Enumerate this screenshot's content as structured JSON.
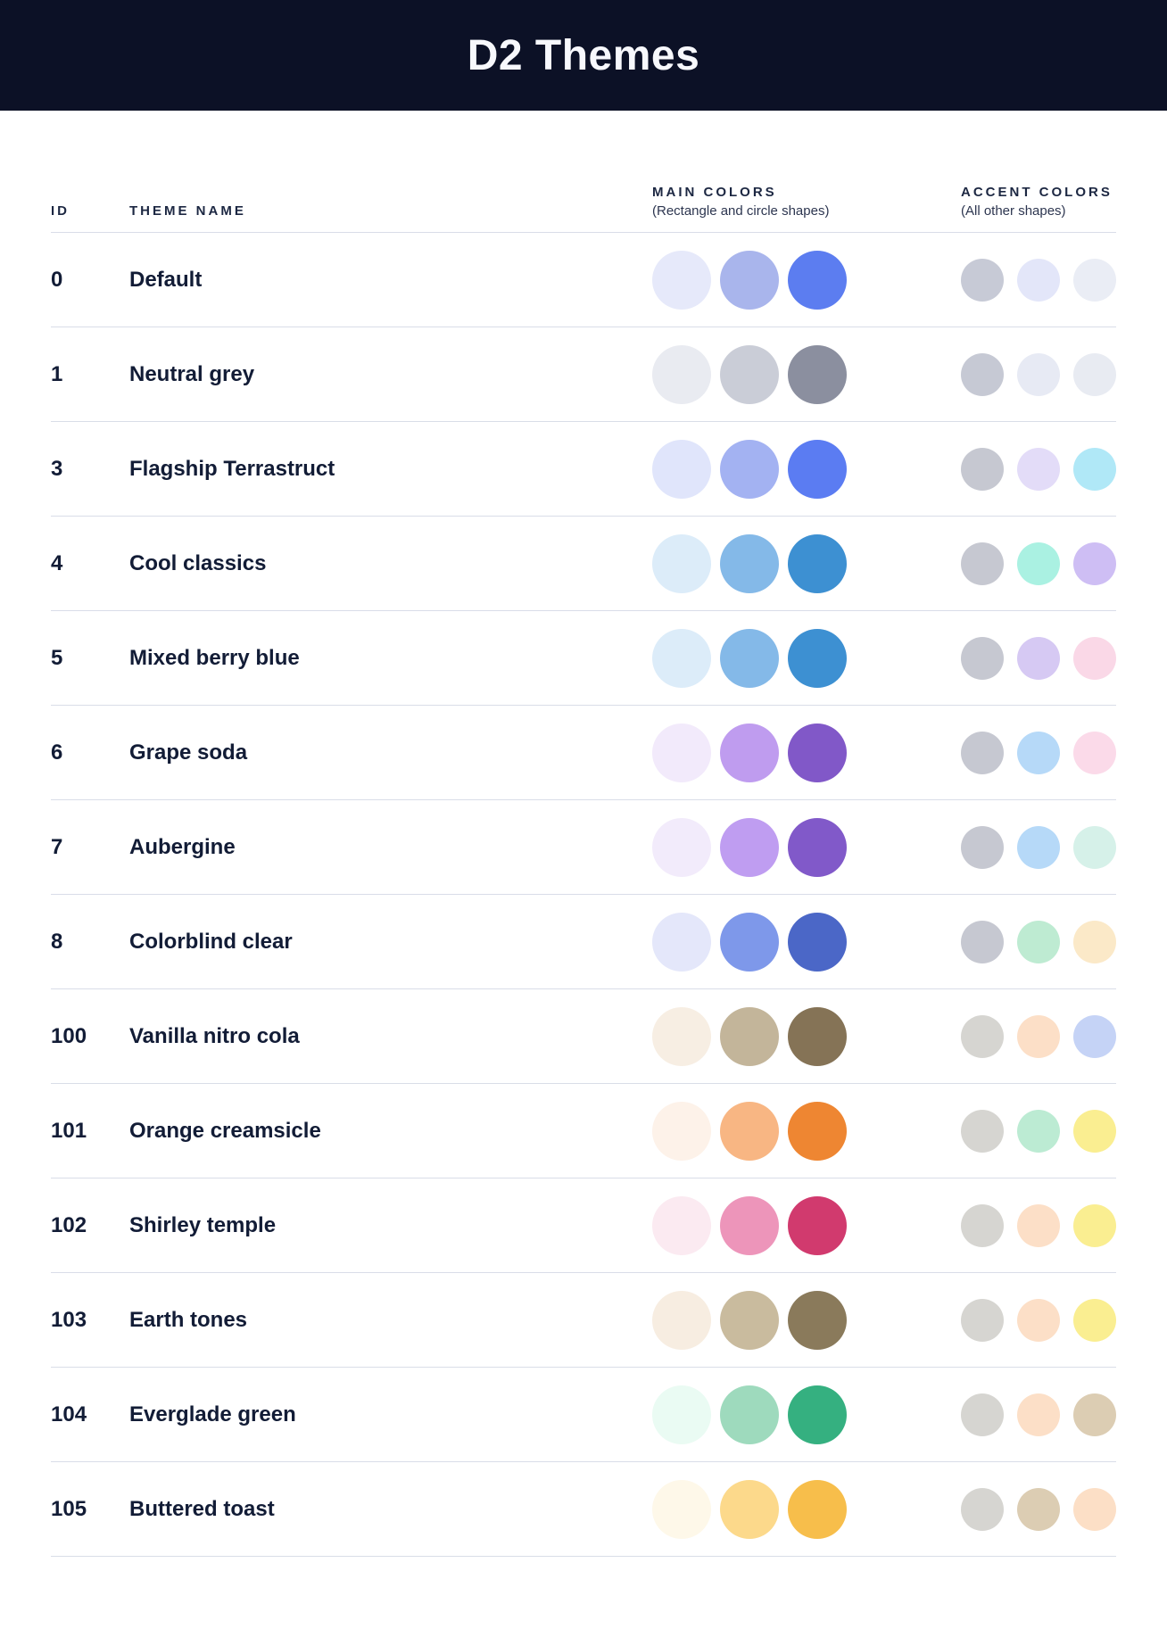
{
  "header": {
    "title": "D2 Themes",
    "background_color": "#0C1126",
    "title_color": "#F7F8FC"
  },
  "table": {
    "columns": {
      "id_label": "ID",
      "name_label": "THEME NAME",
      "main_label": "MAIN COLORS",
      "main_sublabel": "(Rectangle and circle shapes)",
      "accent_label": "ACCENT COLORS",
      "accent_sublabel": "(All other shapes)"
    },
    "separator_color": "#D9DDE8",
    "rows": [
      {
        "id": "0",
        "name": "Default",
        "main": [
          "#E6E9FA",
          "#A9B5EC",
          "#5C7DF0"
        ],
        "accent": [
          "#C7CAD6",
          "#E3E6F9",
          "#EAEDF5"
        ]
      },
      {
        "id": "1",
        "name": "Neutral grey",
        "main": [
          "#E9EBF1",
          "#CACDD7",
          "#8B8F9F"
        ],
        "accent": [
          "#C6C9D4",
          "#E7EAF4",
          "#E8EBF2"
        ]
      },
      {
        "id": "3",
        "name": "Flagship Terrastruct",
        "main": [
          "#E0E5FB",
          "#A3B2F2",
          "#5B7CF2"
        ],
        "accent": [
          "#C6C8D1",
          "#E3DCF8",
          "#B0E8F7"
        ]
      },
      {
        "id": "4",
        "name": "Cool classics",
        "main": [
          "#DCECF9",
          "#84B9E8",
          "#3D90D2"
        ],
        "accent": [
          "#C6C8D1",
          "#AAF1E2",
          "#CEBEF4"
        ]
      },
      {
        "id": "5",
        "name": "Mixed berry blue",
        "main": [
          "#DCECF9",
          "#84B9E8",
          "#3D90D2"
        ],
        "accent": [
          "#C6C8D1",
          "#D6C9F3",
          "#FAD8E7"
        ]
      },
      {
        "id": "6",
        "name": "Grape soda",
        "main": [
          "#F2EAFB",
          "#BF9CEF",
          "#8158C8"
        ],
        "accent": [
          "#C6C8D1",
          "#B6D9F8",
          "#FBDAE9"
        ]
      },
      {
        "id": "7",
        "name": "Aubergine",
        "main": [
          "#F2EBFB",
          "#BF9DF1",
          "#8159C9"
        ],
        "accent": [
          "#C6C8D1",
          "#B6D9F8",
          "#D6F1E9"
        ]
      },
      {
        "id": "8",
        "name": "Colorblind clear",
        "main": [
          "#E4E7FA",
          "#7E98EA",
          "#4B67C7"
        ],
        "accent": [
          "#C6C8D1",
          "#BEEBD2",
          "#FBE9C8"
        ]
      },
      {
        "id": "100",
        "name": "Vanilla nitro cola",
        "main": [
          "#F7EEE3",
          "#C3B59A",
          "#857356"
        ],
        "accent": [
          "#D6D5D1",
          "#FCDFC7",
          "#C5D3F6"
        ]
      },
      {
        "id": "101",
        "name": "Orange creamsicle",
        "main": [
          "#FDF2E9",
          "#F8B683",
          "#EE8632"
        ],
        "accent": [
          "#D6D5D1",
          "#BCEBD3",
          "#FAEE91"
        ]
      },
      {
        "id": "102",
        "name": "Shirley temple",
        "main": [
          "#FBEAF1",
          "#ED95BA",
          "#D13A6E"
        ],
        "accent": [
          "#D6D5D1",
          "#FCDFC7",
          "#FAEE91"
        ]
      },
      {
        "id": "103",
        "name": "Earth tones",
        "main": [
          "#F7EDE1",
          "#C9BB9E",
          "#8A7A5B"
        ],
        "accent": [
          "#D6D5D1",
          "#FCDFC7",
          "#FAEE91"
        ]
      },
      {
        "id": "104",
        "name": "Everglade green",
        "main": [
          "#EAFBF3",
          "#9EDABD",
          "#35B080"
        ],
        "accent": [
          "#D6D5D1",
          "#FCDFC7",
          "#DCCDB3"
        ]
      },
      {
        "id": "105",
        "name": "Buttered toast",
        "main": [
          "#FEF8E9",
          "#FCD98B",
          "#F7BE4B"
        ],
        "accent": [
          "#D6D5D1",
          "#DCCDB3",
          "#FCDFC6"
        ]
      }
    ]
  }
}
